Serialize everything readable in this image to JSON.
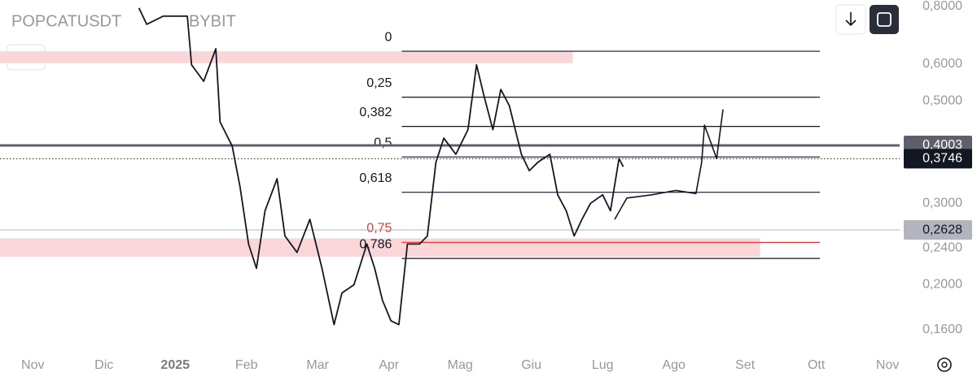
{
  "chart_data": {
    "type": "line",
    "symbol": "POPCATUSDT",
    "exchange": "BYBIT",
    "log_scale": true,
    "xlim": [
      -0.46,
      12.17
    ],
    "xticks": [
      {
        "value": 0,
        "label": "Nov"
      },
      {
        "value": 1,
        "label": "Dic"
      },
      {
        "value": 2,
        "label": "2025"
      },
      {
        "value": 3,
        "label": "Feb"
      },
      {
        "value": 4,
        "label": "Mar"
      },
      {
        "value": 5,
        "label": "Apr"
      },
      {
        "value": 6,
        "label": "Mag"
      },
      {
        "value": 7,
        "label": "Giu"
      },
      {
        "value": 8,
        "label": "Lug"
      },
      {
        "value": 9,
        "label": "Ago"
      },
      {
        "value": 10,
        "label": "Set"
      },
      {
        "value": 11,
        "label": "Ott"
      },
      {
        "value": 12,
        "label": "Nov"
      }
    ],
    "ylim": [
      0.145,
      0.826
    ],
    "yticks": [
      {
        "value": 0.8,
        "label": "0,8000"
      },
      {
        "value": 0.6,
        "label": "0,6000"
      },
      {
        "value": 0.5,
        "label": "0,5000"
      },
      {
        "value": 0.3,
        "label": "0,3000"
      },
      {
        "value": 0.24,
        "label": "0,2400"
      },
      {
        "value": 0.2,
        "label": "0,2000"
      },
      {
        "value": 0.16,
        "label": "0,1600"
      }
    ],
    "series": [
      {
        "color": "#131722",
        "x": [
          1.49,
          1.6,
          1.83,
          2.17,
          2.23,
          2.4,
          2.57,
          2.63,
          2.8,
          2.91,
          3.03,
          3.14,
          3.26,
          3.43,
          3.54,
          3.71,
          3.89,
          4.06,
          4.23,
          4.34,
          4.51,
          4.69,
          4.8,
          4.91,
          5.03,
          5.14,
          5.26,
          5.43,
          5.54,
          5.66,
          5.77,
          5.94,
          6.11,
          6.23,
          6.34,
          6.46,
          6.57,
          6.69,
          6.86,
          6.97,
          7.09,
          7.26,
          7.37,
          7.49,
          7.6,
          7.71,
          7.83,
          8.0,
          8.11,
          8.23,
          8.29
        ],
        "values": [
          0.794,
          0.732,
          0.762,
          0.762,
          0.598,
          0.551,
          0.648,
          0.45,
          0.399,
          0.326,
          0.245,
          0.217,
          0.289,
          0.339,
          0.255,
          0.235,
          0.277,
          0.217,
          0.164,
          0.192,
          0.2,
          0.245,
          0.217,
          0.185,
          0.167,
          0.164,
          0.245,
          0.245,
          0.255,
          0.368,
          0.415,
          0.383,
          0.433,
          0.598,
          0.509,
          0.433,
          0.529,
          0.488,
          0.383,
          0.353,
          0.368,
          0.383,
          0.313,
          0.289,
          0.255,
          0.277,
          0.3,
          0.313,
          0.289,
          0.375,
          0.36
        ]
      },
      {
        "color": "#131722",
        "x": [
          8.17,
          8.34,
          8.69,
          9.03,
          9.31,
          9.39,
          9.43,
          9.6,
          9.69
        ],
        "values": [
          0.277,
          0.308,
          0.313,
          0.32,
          0.315,
          0.368,
          0.443,
          0.375,
          0.479
        ]
      }
    ],
    "levels": [
      {
        "value": 0.64,
        "label": "0",
        "color": "#131722"
      },
      {
        "value": 0.509,
        "label": "0,25",
        "color": "#131722"
      },
      {
        "value": 0.44,
        "label": "0,382",
        "color": "#131722"
      },
      {
        "value": 0.378,
        "label": "0,5",
        "color": "#131722"
      },
      {
        "value": 0.317,
        "label": "0,618",
        "color": "#131722"
      },
      {
        "value": 0.247,
        "label": "0,75",
        "color": "#e53935"
      },
      {
        "value": 0.228,
        "label": "0,786",
        "color": "#131722"
      }
    ],
    "levels_x": [
      5.18,
      11.05
    ],
    "zones": [
      {
        "from": 0.603,
        "to": 0.64,
        "x": [
          -0.46,
          7.58
        ],
        "color": "#fbd6d9"
      },
      {
        "from": 0.23,
        "to": 0.252,
        "x": [
          -0.46,
          10.21
        ],
        "color": "#fbd6d9"
      }
    ],
    "price_lines": [
      {
        "value": 0.4003,
        "label": "0,4003",
        "color": "#5d606b"
      },
      {
        "value": 0.3746,
        "label": "0,3746",
        "color": "#131722"
      },
      {
        "value": 0.2628,
        "label": "0,2628",
        "color": "#b2b5be"
      }
    ]
  }
}
